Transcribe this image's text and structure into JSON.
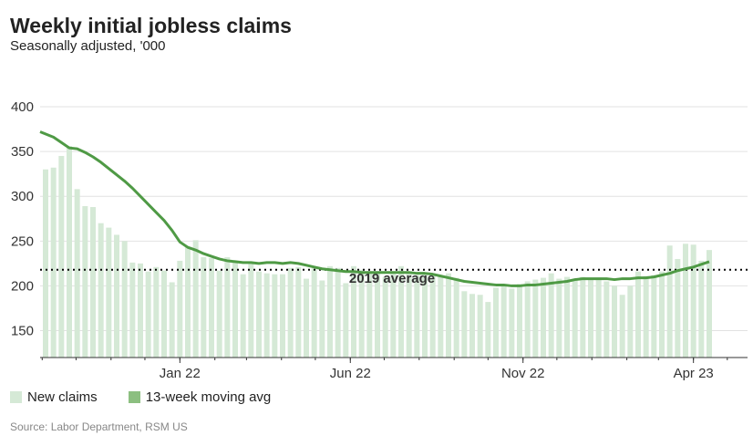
{
  "title": "Weekly initial jobless claims",
  "subtitle": "Seasonally adjusted, '000",
  "source": "Source: Labor Department, RSM US",
  "chart_data": {
    "type": "bar",
    "title": "Weekly initial jobless claims",
    "subtitle": "Seasonally adjusted, '000",
    "ylim": [
      120,
      400
    ],
    "yticks": [
      150,
      200,
      250,
      300,
      350,
      400
    ],
    "xticks": [
      {
        "label": "Jan 22",
        "date": "2022-01-01"
      },
      {
        "label": "Jun 22",
        "date": "2022-06-01"
      },
      {
        "label": "Nov 22",
        "date": "2022-11-01"
      },
      {
        "label": "Apr 23",
        "date": "2023-04-01"
      }
    ],
    "grid": true,
    "legend_placement": "bottom-left",
    "colors": {
      "bars": "#d5e9d6",
      "line": "#4f9a45",
      "line_legend": "#8cbf80",
      "reference": "#000000"
    },
    "reference_line": {
      "label": "2019 average",
      "value": 218
    },
    "x": [
      "2021-09-04",
      "2021-09-11",
      "2021-09-18",
      "2021-09-25",
      "2021-10-02",
      "2021-10-09",
      "2021-10-16",
      "2021-10-23",
      "2021-10-30",
      "2021-11-06",
      "2021-11-13",
      "2021-11-20",
      "2021-11-27",
      "2021-12-04",
      "2021-12-11",
      "2021-12-18",
      "2021-12-25",
      "2022-01-01",
      "2022-01-08",
      "2022-01-15",
      "2022-01-22",
      "2022-01-29",
      "2022-02-05",
      "2022-02-12",
      "2022-02-19",
      "2022-02-26",
      "2022-03-05",
      "2022-03-12",
      "2022-03-19",
      "2022-03-26",
      "2022-04-02",
      "2022-04-09",
      "2022-04-16",
      "2022-04-23",
      "2022-04-30",
      "2022-05-07",
      "2022-05-14",
      "2022-05-21",
      "2022-05-28",
      "2022-06-04",
      "2022-06-11",
      "2022-06-18",
      "2022-06-25",
      "2022-07-02",
      "2022-07-09",
      "2022-07-16",
      "2022-07-23",
      "2022-07-30",
      "2022-08-06",
      "2022-08-13",
      "2022-08-20",
      "2022-08-27",
      "2022-09-03",
      "2022-09-10",
      "2022-09-17",
      "2022-09-24",
      "2022-10-01",
      "2022-10-08",
      "2022-10-15",
      "2022-10-22",
      "2022-10-29",
      "2022-11-05",
      "2022-11-12",
      "2022-11-19",
      "2022-11-26",
      "2022-12-03",
      "2022-12-10",
      "2022-12-17",
      "2022-12-24",
      "2022-12-31",
      "2023-01-07",
      "2023-01-14",
      "2023-01-21",
      "2023-01-28",
      "2023-02-04",
      "2023-02-11",
      "2023-02-18",
      "2023-02-25",
      "2023-03-04",
      "2023-03-11",
      "2023-03-18",
      "2023-03-25",
      "2023-04-01",
      "2023-04-08",
      "2023-04-15"
    ],
    "series": [
      {
        "name": "New claims",
        "type": "bar",
        "values": [
          330,
          332,
          345,
          356,
          308,
          289,
          288,
          270,
          265,
          257,
          250,
          226,
          225,
          216,
          221,
          217,
          204,
          228,
          243,
          251,
          232,
          231,
          217,
          232,
          226,
          213,
          226,
          216,
          214,
          213,
          213,
          220,
          221,
          208,
          220,
          206,
          222,
          220,
          203,
          222,
          218,
          215,
          214,
          210,
          215,
          222,
          214,
          212,
          215,
          213,
          210,
          214,
          209,
          194,
          191,
          190,
          182,
          198,
          200,
          197,
          202,
          205,
          207,
          209,
          214,
          208,
          210,
          206,
          210,
          209,
          207,
          205,
          200,
          190,
          200,
          216,
          211,
          212,
          216,
          245,
          230,
          247,
          246,
          228,
          240
        ]
      },
      {
        "name": "13-week moving avg",
        "type": "line",
        "values": [
          372,
          366,
          360,
          354,
          353,
          349,
          344,
          338,
          331,
          324,
          317,
          309,
          300,
          291,
          282,
          273,
          262,
          249,
          243,
          240,
          236,
          233,
          230,
          228,
          227,
          226,
          226,
          225,
          226,
          226,
          225,
          226,
          225,
          223,
          221,
          219,
          218,
          217,
          216,
          216,
          215,
          215,
          215,
          215,
          215,
          215,
          215,
          214,
          214,
          213,
          211,
          209,
          207,
          205,
          204,
          203,
          202,
          201,
          201,
          200,
          200,
          201,
          201,
          202,
          203,
          204,
          205,
          207,
          208,
          208,
          208,
          208,
          207,
          208,
          208,
          209,
          209,
          210,
          212,
          214,
          217,
          219,
          221,
          224,
          227
        ]
      }
    ]
  }
}
